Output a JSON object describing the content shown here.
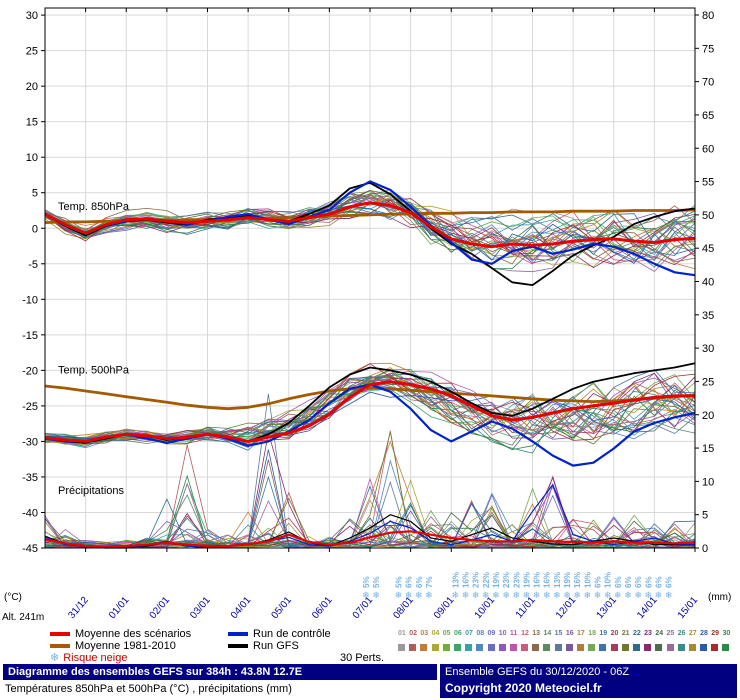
{
  "icons": {
    "snowflake": "❄"
  },
  "axes": {
    "left_unit": "(°C)",
    "right_unit": "(mm)",
    "left_ticks": [
      30,
      25,
      20,
      15,
      10,
      5,
      0,
      -5,
      -10,
      -15,
      -20,
      -25,
      -30,
      -35,
      -40,
      -45
    ],
    "right_ticks": [
      80,
      75,
      70,
      65,
      60,
      55,
      50,
      45,
      40,
      35,
      30,
      25,
      20,
      15,
      10,
      5,
      0
    ],
    "date_labels": [
      "31/12",
      "01/01",
      "02/01",
      "03/01",
      "04/01",
      "05/01",
      "06/01",
      "07/01",
      "08/01",
      "09/01",
      "10/01",
      "11/01",
      "12/01",
      "13/01",
      "14/01",
      "15/01"
    ],
    "date_color": "#0000a0",
    "grid_color": "#d9d9d9"
  },
  "plot_labels": {
    "t850": "Temp. 850hPa",
    "t500": "Temp. 500hPa",
    "precip": "Précipitations"
  },
  "alt_label": "Alt. 241m",
  "snow_risk": [
    {
      "t": 7.9,
      "pct": "5%"
    },
    {
      "t": 8.15,
      "pct": "5%"
    },
    {
      "t": 8.7,
      "pct": "5%"
    },
    {
      "t": 8.95,
      "pct": "6%"
    },
    {
      "t": 9.2,
      "pct": "6%"
    },
    {
      "t": 9.45,
      "pct": "7%"
    },
    {
      "t": 10.1,
      "pct": "13%"
    },
    {
      "t": 10.35,
      "pct": "16%"
    },
    {
      "t": 10.6,
      "pct": "23%"
    },
    {
      "t": 10.85,
      "pct": "22%"
    },
    {
      "t": 11.1,
      "pct": "19%"
    },
    {
      "t": 11.35,
      "pct": "23%"
    },
    {
      "t": 11.6,
      "pct": "23%"
    },
    {
      "t": 11.85,
      "pct": "19%"
    },
    {
      "t": 12.1,
      "pct": "16%"
    },
    {
      "t": 12.35,
      "pct": "16%"
    },
    {
      "t": 12.6,
      "pct": "13%"
    },
    {
      "t": 12.85,
      "pct": "19%"
    },
    {
      "t": 13.1,
      "pct": "16%"
    },
    {
      "t": 13.35,
      "pct": "10%"
    },
    {
      "t": 13.6,
      "pct": "6%"
    },
    {
      "t": 13.85,
      "pct": "10%"
    },
    {
      "t": 14.1,
      "pct": "6%"
    },
    {
      "t": 14.35,
      "pct": "6%"
    },
    {
      "t": 14.6,
      "pct": "6%"
    },
    {
      "t": 14.85,
      "pct": "6%"
    },
    {
      "t": 15.1,
      "pct": "6%"
    },
    {
      "t": 15.35,
      "pct": "6%"
    }
  ],
  "snow_color": "#79b2e0",
  "legend": {
    "mean": {
      "label": "Moyenne des scénarios",
      "color": "#e60000"
    },
    "clim": {
      "label": "Moyenne 1981-2010",
      "color": "#a35a00"
    },
    "snow": {
      "label": "Risque neige",
      "color": "#cc0000",
      "icon_color": "#79b2e0"
    },
    "control": {
      "label": "Run de contrôle",
      "color": "#0022cc"
    },
    "gfs": {
      "label": "Run GFS",
      "color": "#000000"
    },
    "perts_label": "30 Perts.",
    "members": [
      "01",
      "02",
      "03",
      "04",
      "05",
      "06",
      "07",
      "08",
      "09",
      "10",
      "11",
      "12",
      "13",
      "14",
      "15",
      "16",
      "17",
      "18",
      "19",
      "20",
      "21",
      "22",
      "23",
      "24",
      "25",
      "26",
      "27",
      "28",
      "29",
      "30"
    ],
    "member_colors": [
      "#9a9a9a",
      "#b05c5c",
      "#c27d3a",
      "#a9a838",
      "#6fae3c",
      "#3aa76d",
      "#35a3a3",
      "#4f87c4",
      "#6a6ac9",
      "#9357b8",
      "#bd56a8",
      "#c75d7a",
      "#8a6a4a",
      "#5c8a63",
      "#5a7a9e",
      "#7a5a9e",
      "#b07f35",
      "#74a852",
      "#3a74a8",
      "#a83a5c",
      "#6e7a2a",
      "#2a6e8a",
      "#8a2a6e",
      "#4a6e4a",
      "#9a6a9a",
      "#3a8a8a",
      "#a88a2a",
      "#2a5aa8",
      "#a82a2a",
      "#2a8a4a"
    ]
  },
  "footer": {
    "title": "Diagramme des ensembles GEFS sur 384h : 43.8N 12.7E",
    "subtitle": "Températures 850hPa et 500hPa (°C) , précipitations (mm)",
    "run_info": "Ensemble GEFS du 30/12/2020 - 06Z",
    "copyright": "Copyright 2020 Meteociel.fr",
    "bar_color": "#000080"
  },
  "chart_data": {
    "type": "line",
    "title": "Diagramme des ensembles GEFS sur 384h : 43.8N 12.7E",
    "subtitle": "Températures 850hPa et 500hPa (°C) , précipitations (mm)",
    "x_step_days": 0.5,
    "x_range_days": [
      0,
      16
    ],
    "x_tick_labels": [
      "31/12",
      "01/01",
      "02/01",
      "03/01",
      "04/01",
      "05/01",
      "06/01",
      "07/01",
      "08/01",
      "09/01",
      "10/01",
      "11/01",
      "12/01",
      "13/01",
      "14/01",
      "15/01"
    ],
    "left_axis": {
      "label": "(°C)",
      "min": -45,
      "max": 30,
      "tick_step": 5
    },
    "right_axis": {
      "label": "(mm)",
      "min": 0,
      "max": 80,
      "tick_step": 5
    },
    "grid": true,
    "legend_position": "bottom",
    "series": [
      {
        "id": "t850_clim",
        "name": "Temp. 850hPa - Moyenne 1981-2010",
        "axis": "left",
        "color": "#a35a00",
        "width": 2.8,
        "values": [
          0.8,
          0.9,
          0.9,
          1.0,
          1.0,
          1.1,
          1.1,
          1.2,
          1.2,
          1.3,
          1.4,
          1.4,
          1.5,
          1.6,
          1.7,
          1.8,
          1.9,
          2.0,
          2.0,
          2.1,
          2.1,
          2.2,
          2.2,
          2.3,
          2.3,
          2.3,
          2.4,
          2.4,
          2.4,
          2.5,
          2.5,
          2.5,
          2.6
        ]
      },
      {
        "id": "t500_clim",
        "name": "Temp. 500hPa - Moyenne 1981-2010",
        "axis": "left",
        "color": "#a35a00",
        "width": 2.8,
        "values": [
          -22.2,
          -22.5,
          -22.9,
          -23.3,
          -23.7,
          -24.1,
          -24.5,
          -24.9,
          -25.2,
          -25.4,
          -25.2,
          -24.7,
          -24.0,
          -23.4,
          -22.9,
          -22.6,
          -22.5,
          -22.6,
          -22.8,
          -23.0,
          -23.2,
          -23.4,
          -23.6,
          -23.8,
          -24.0,
          -24.2,
          -24.3,
          -24.4,
          -24.3,
          -24.1,
          -23.9,
          -23.7,
          -23.5
        ]
      },
      {
        "id": "t850_gfs",
        "name": "Temp. 850hPa - Run GFS",
        "axis": "left",
        "color": "#000000",
        "width": 1.8,
        "values": [
          2.0,
          0.3,
          -1.0,
          0.3,
          1.0,
          1.2,
          0.8,
          0.5,
          1.2,
          1.5,
          1.8,
          1.2,
          1.0,
          2.0,
          3.2,
          5.6,
          6.4,
          4.8,
          2.4,
          0.0,
          -2.2,
          -3.6,
          -5.6,
          -7.6,
          -8.0,
          -6.0,
          -3.8,
          -2.4,
          -1.2,
          0.6,
          1.6,
          2.4,
          2.8
        ]
      },
      {
        "id": "t500_gfs",
        "name": "Temp. 500hPa - Run GFS",
        "axis": "left",
        "color": "#000000",
        "width": 1.8,
        "values": [
          -29.6,
          -30.0,
          -30.2,
          -29.6,
          -29.0,
          -29.2,
          -29.8,
          -29.4,
          -29.0,
          -29.4,
          -30.0,
          -29.0,
          -27.4,
          -25.0,
          -22.4,
          -20.6,
          -19.6,
          -20.0,
          -20.6,
          -21.6,
          -23.0,
          -24.6,
          -26.0,
          -26.4,
          -25.4,
          -24.0,
          -22.6,
          -21.6,
          -21.0,
          -20.4,
          -20.0,
          -19.6,
          -19.0
        ]
      },
      {
        "id": "precip_gfs",
        "name": "Précipitations - Run GFS",
        "axis": "right",
        "color": "#000000",
        "width": 1.2,
        "values": [
          1.8,
          0.6,
          0.2,
          0.0,
          0.2,
          0.3,
          0.8,
          0.3,
          0.2,
          0.3,
          0.5,
          1.2,
          2.4,
          0.8,
          0.3,
          1.5,
          3.0,
          5.0,
          4.0,
          1.5,
          1.0,
          2.0,
          3.0,
          1.5,
          1.0,
          0.6,
          0.5,
          1.0,
          1.5,
          1.0,
          0.5,
          0.5,
          0.5
        ]
      },
      {
        "id": "t850_control",
        "name": "Temp. 850hPa - Run de contrôle",
        "axis": "left",
        "color": "#0022cc",
        "width": 2.2,
        "values": [
          2.0,
          0.4,
          -0.8,
          0.4,
          1.0,
          1.4,
          1.0,
          0.6,
          1.0,
          1.6,
          2.0,
          1.2,
          0.6,
          1.6,
          2.6,
          5.0,
          6.6,
          5.4,
          3.0,
          0.4,
          -2.0,
          -4.4,
          -5.0,
          -3.2,
          -2.6,
          -3.6,
          -3.0,
          -2.2,
          -2.6,
          -3.6,
          -5.0,
          -6.2,
          -6.6
        ]
      },
      {
        "id": "t500_control",
        "name": "Temp. 500hPa - Run de contrôle",
        "axis": "left",
        "color": "#0022cc",
        "width": 2.2,
        "values": [
          -29.6,
          -30.0,
          -30.0,
          -29.4,
          -29.0,
          -29.6,
          -30.2,
          -29.6,
          -29.0,
          -29.6,
          -30.6,
          -30.0,
          -28.6,
          -27.0,
          -24.6,
          -22.6,
          -22.0,
          -23.0,
          -25.4,
          -28.4,
          -30.0,
          -28.6,
          -27.2,
          -28.2,
          -30.0,
          -32.0,
          -33.4,
          -33.0,
          -31.0,
          -28.6,
          -27.4,
          -26.6,
          -26.0
        ]
      },
      {
        "id": "precip_control",
        "name": "Précipitations - Run de contrôle",
        "axis": "right",
        "color": "#0022cc",
        "width": 1.2,
        "values": [
          1.6,
          0.5,
          0.2,
          0.0,
          0.0,
          0.5,
          1.0,
          0.3,
          0.0,
          0.2,
          0.5,
          1.0,
          1.6,
          0.5,
          0.3,
          1.0,
          2.2,
          4.0,
          3.0,
          1.0,
          0.5,
          1.2,
          2.0,
          1.0,
          5.5,
          9.5,
          2.0,
          1.0,
          0.5,
          1.0,
          1.5,
          0.6,
          0.5
        ]
      },
      {
        "id": "t850_mean",
        "name": "Temp. 850hPa - Moyenne des scénarios",
        "axis": "left",
        "color": "#e60000",
        "width": 3,
        "values": [
          2.0,
          0.5,
          -0.7,
          0.5,
          1.2,
          1.3,
          1.0,
          0.8,
          1.0,
          1.2,
          1.5,
          1.2,
          1.0,
          1.5,
          2.0,
          3.0,
          3.6,
          3.2,
          2.2,
          0.2,
          -1.5,
          -2.2,
          -2.6,
          -2.2,
          -2.4,
          -2.2,
          -1.8,
          -1.6,
          -1.5,
          -1.8,
          -2.0,
          -1.6,
          -1.4
        ]
      },
      {
        "id": "t500_mean",
        "name": "Temp. 500hPa - Moyenne des scénarios",
        "axis": "left",
        "color": "#e60000",
        "width": 3,
        "values": [
          -29.5,
          -29.8,
          -30.0,
          -29.4,
          -29.0,
          -29.2,
          -29.6,
          -29.4,
          -29.0,
          -29.4,
          -30.0,
          -29.4,
          -28.8,
          -27.8,
          -26.2,
          -23.8,
          -22.0,
          -21.6,
          -22.0,
          -22.6,
          -23.6,
          -25.0,
          -26.4,
          -27.0,
          -26.6,
          -26.0,
          -25.4,
          -25.0,
          -24.6,
          -24.2,
          -23.8,
          -23.6,
          -23.6
        ]
      },
      {
        "id": "precip_mean",
        "name": "Précipitations - Moyenne des scénarios",
        "axis": "right",
        "color": "#e60000",
        "width": 2.2,
        "values": [
          1.3,
          0.7,
          0.3,
          0.2,
          0.3,
          0.5,
          0.8,
          0.5,
          0.3,
          0.3,
          0.6,
          1.0,
          2.0,
          0.9,
          0.5,
          0.8,
          1.6,
          2.3,
          2.5,
          2.0,
          1.5,
          1.2,
          1.0,
          1.0,
          1.2,
          1.0,
          0.9,
          0.8,
          1.0,
          0.8,
          0.8,
          0.7,
          0.8
        ]
      }
    ],
    "ensemble_envelopes": {
      "t850": {
        "min": [
          1.0,
          -1.6,
          -2.6,
          -1.6,
          -1.0,
          -1.0,
          -1.6,
          -1.6,
          -1.0,
          -1.0,
          -0.6,
          -1.0,
          -1.6,
          -1.0,
          -0.4,
          0.0,
          0.4,
          -0.6,
          -2.0,
          -4.0,
          -6.0,
          -7.0,
          -8.0,
          -8.0,
          -8.0,
          -8.6,
          -9.0,
          -8.6,
          -8.0,
          -8.0,
          -8.6,
          -8.0,
          -8.0
        ],
        "max": [
          3.0,
          2.4,
          1.4,
          2.4,
          3.0,
          3.4,
          3.0,
          3.0,
          3.0,
          3.4,
          4.0,
          3.4,
          3.0,
          4.0,
          5.0,
          6.6,
          7.0,
          7.0,
          6.6,
          6.0,
          5.0,
          4.6,
          4.0,
          4.0,
          4.6,
          4.0,
          4.0,
          4.6,
          5.0,
          5.0,
          5.0,
          5.6,
          6.0
        ]
      },
      "t500": {
        "min": [
          -30.6,
          -31.0,
          -31.6,
          -31.0,
          -30.6,
          -30.6,
          -31.0,
          -31.0,
          -30.6,
          -31.0,
          -32.0,
          -31.6,
          -31.0,
          -30.0,
          -29.0,
          -27.0,
          -25.0,
          -25.6,
          -26.6,
          -28.6,
          -30.0,
          -31.0,
          -32.0,
          -33.0,
          -33.6,
          -34.0,
          -34.6,
          -34.0,
          -33.0,
          -32.6,
          -32.0,
          -31.6,
          -31.0
        ],
        "max": [
          -28.6,
          -28.6,
          -28.6,
          -28.0,
          -27.6,
          -27.6,
          -28.0,
          -27.6,
          -26.6,
          -26.0,
          -25.6,
          -25.0,
          -24.0,
          -22.6,
          -21.0,
          -19.6,
          -19.0,
          -18.6,
          -19.0,
          -19.6,
          -20.0,
          -20.6,
          -21.0,
          -21.0,
          -20.6,
          -20.0,
          -19.6,
          -19.0,
          -18.6,
          -18.0,
          -17.6,
          -17.0,
          -16.6
        ]
      },
      "precip": {
        "max": [
          5,
          3,
          1,
          0.5,
          1,
          2,
          8,
          16,
          4,
          2,
          6,
          26,
          10,
          3,
          2,
          5,
          12,
          18,
          15,
          8,
          6,
          8,
          10,
          8,
          10,
          12,
          6,
          5,
          6,
          5,
          4,
          4,
          5
        ]
      }
    }
  }
}
